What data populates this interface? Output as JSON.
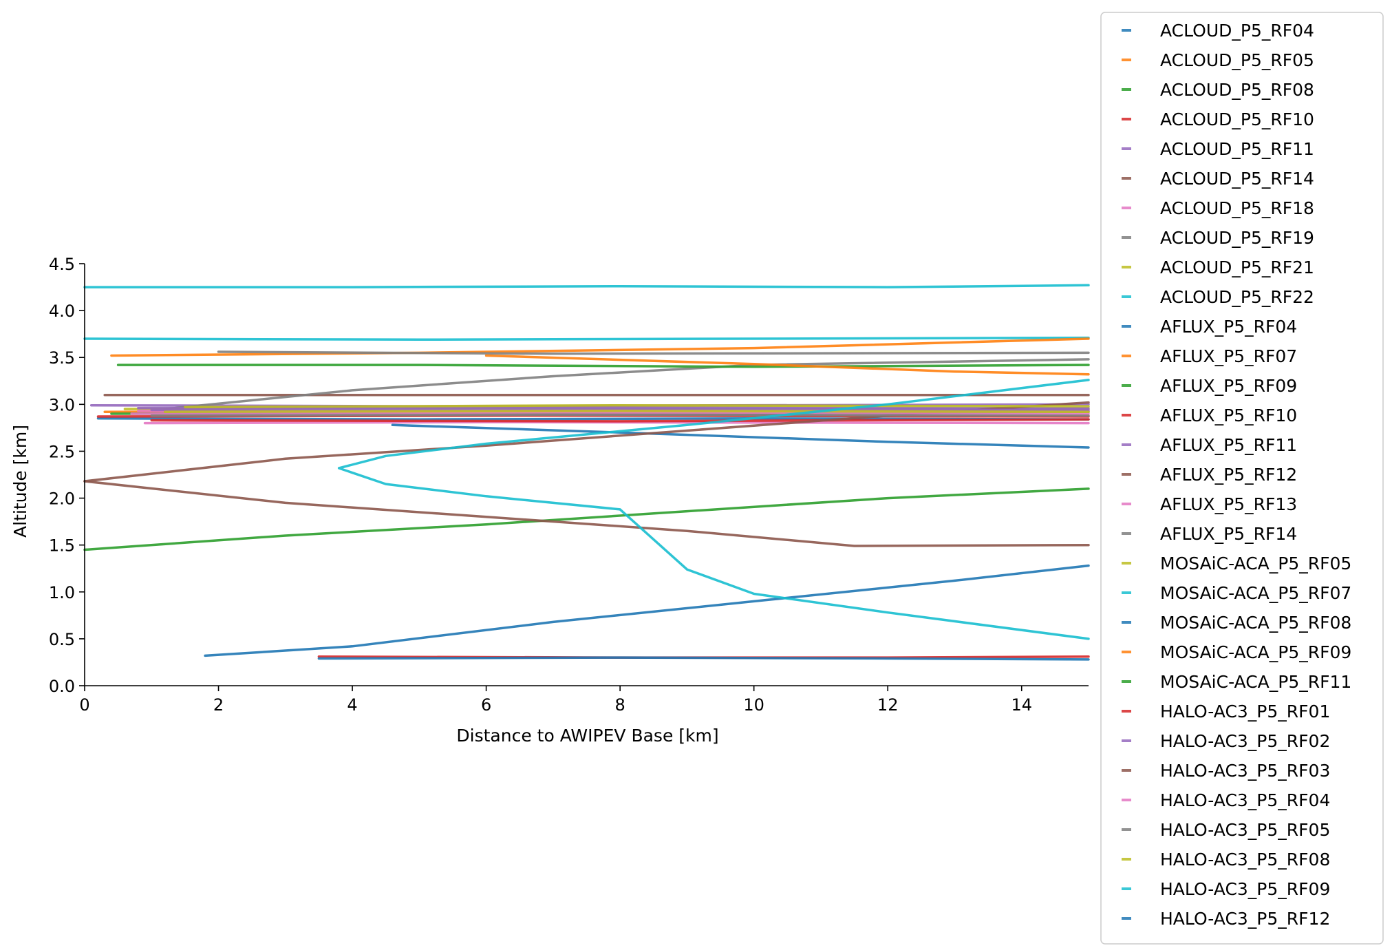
{
  "chart_data": {
    "type": "line",
    "title": "",
    "xlabel": "Distance to AWIPEV Base [km]",
    "ylabel": "Altitude [km]",
    "xlim": [
      0,
      15
    ],
    "ylim": [
      0,
      4.5
    ],
    "xticks": [
      "0",
      "2",
      "4",
      "6",
      "8",
      "10",
      "12",
      "14"
    ],
    "yticks": [
      "0.0",
      "0.5",
      "1.0",
      "1.5",
      "2.0",
      "2.5",
      "3.0",
      "3.5",
      "4.0",
      "4.5"
    ],
    "grid": false,
    "legend_position": "outside right",
    "series": [
      {
        "name": "ACLOUD_P5_RF04",
        "color": "#1f77b4",
        "x": [
          0.2,
          5,
          10,
          15
        ],
        "y": [
          2.85,
          2.84,
          2.85,
          2.84
        ]
      },
      {
        "name": "ACLOUD_P5_RF05",
        "color": "#ff7f0e",
        "x": [
          0.3,
          8,
          15
        ],
        "y": [
          2.92,
          2.93,
          2.92
        ]
      },
      {
        "name": "ACLOUD_P5_RF08",
        "color": "#2c9f2c",
        "x": [
          0.4,
          5,
          10,
          15
        ],
        "y": [
          2.9,
          2.91,
          2.9,
          2.92
        ]
      },
      {
        "name": "ACLOUD_P5_RF10",
        "color": "#d62728",
        "x": [
          0.2,
          7,
          15
        ],
        "y": [
          2.87,
          2.88,
          2.87
        ]
      },
      {
        "name": "ACLOUD_P5_RF11",
        "color": "#9467bd",
        "x": [
          0.1,
          5,
          15
        ],
        "y": [
          2.99,
          2.98,
          3.0
        ]
      },
      {
        "name": "ACLOUD_P5_RF14",
        "color": "#8c564b",
        "x": [
          0.3,
          4,
          15
        ],
        "y": [
          3.1,
          3.1,
          3.1
        ]
      },
      {
        "name": "ACLOUD_P5_RF18",
        "color": "#e377c2",
        "x": [
          0.9,
          6,
          15
        ],
        "y": [
          2.8,
          2.81,
          2.8
        ]
      },
      {
        "name": "ACLOUD_P5_RF19",
        "color": "#7f7f7f",
        "x": [
          1.2,
          4,
          7,
          10,
          15
        ],
        "y": [
          2.95,
          3.15,
          3.3,
          3.42,
          3.48
        ]
      },
      {
        "name": "ACLOUD_P5_RF21",
        "color": "#bcbd22",
        "x": [
          0.6,
          6,
          15
        ],
        "y": [
          2.95,
          2.96,
          2.95
        ]
      },
      {
        "name": "ACLOUD_P5_RF22",
        "color": "#17becf",
        "x": [
          0.0,
          5,
          15
        ],
        "y": [
          3.7,
          3.69,
          3.71
        ]
      },
      {
        "name": "AFLUX_P5_RF04",
        "color": "#1f77b4",
        "x": [
          4.6,
          8,
          12,
          15
        ],
        "y": [
          2.78,
          2.7,
          2.6,
          2.54
        ]
      },
      {
        "name": "AFLUX_P5_RF07",
        "color": "#ff7f0e",
        "x": [
          0.4,
          5,
          10,
          15
        ],
        "y": [
          3.52,
          3.55,
          3.6,
          3.7
        ]
      },
      {
        "name": "AFLUX_P5_RF09",
        "color": "#2c9f2c",
        "x": [
          0.5,
          5,
          10,
          15
        ],
        "y": [
          3.42,
          3.42,
          3.4,
          3.42
        ]
      },
      {
        "name": "AFLUX_P5_RF10",
        "color": "#d62728",
        "x": [
          1.0,
          8,
          15
        ],
        "y": [
          2.83,
          2.82,
          2.84
        ]
      },
      {
        "name": "AFLUX_P5_RF11",
        "color": "#9467bd",
        "x": [
          0.8,
          6,
          15
        ],
        "y": [
          2.96,
          2.97,
          2.96
        ]
      },
      {
        "name": "AFLUX_P5_RF12",
        "color": "#8c564b",
        "x": [
          0.0,
          3,
          6,
          9,
          12,
          15
        ],
        "y": [
          2.18,
          2.42,
          2.56,
          2.72,
          2.88,
          3.02
        ]
      },
      {
        "name": "AFLUX_P5_RF13",
        "color": "#e377c2",
        "x": [
          0.8,
          5,
          15
        ],
        "y": [
          2.93,
          2.92,
          2.93
        ]
      },
      {
        "name": "AFLUX_P5_RF14",
        "color": "#7f7f7f",
        "x": [
          2.0,
          7,
          15
        ],
        "y": [
          3.56,
          3.54,
          3.55
        ]
      },
      {
        "name": "MOSAiC-ACA_P5_RF05",
        "color": "#bcbd22",
        "x": [
          1.5,
          8,
          15
        ],
        "y": [
          2.97,
          2.99,
          2.98
        ]
      },
      {
        "name": "MOSAiC-ACA_P5_RF07",
        "color": "#17becf",
        "x": [
          0.0,
          4,
          8,
          12,
          15
        ],
        "y": [
          4.25,
          4.25,
          4.26,
          4.25,
          4.27
        ]
      },
      {
        "name": "MOSAiC-ACA_P5_RF08",
        "color": "#1f77b4",
        "x": [
          1.8,
          4,
          7,
          10,
          13,
          15
        ],
        "y": [
          0.32,
          0.42,
          0.68,
          0.9,
          1.12,
          1.28
        ]
      },
      {
        "name": "MOSAiC-ACA_P5_RF09",
        "color": "#ff7f0e",
        "x": [
          6.0,
          10,
          13,
          15
        ],
        "y": [
          3.52,
          3.43,
          3.35,
          3.32
        ]
      },
      {
        "name": "MOSAiC-ACA_P5_RF11",
        "color": "#2c9f2c",
        "x": [
          0.0,
          3,
          6,
          9,
          12,
          15
        ],
        "y": [
          1.45,
          1.6,
          1.72,
          1.86,
          2.0,
          2.1
        ]
      },
      {
        "name": "HALO-AC3_P5_RF01",
        "color": "#d62728",
        "x": [
          3.5,
          8,
          12,
          15
        ],
        "y": [
          0.31,
          0.3,
          0.3,
          0.31
        ]
      },
      {
        "name": "HALO-AC3_P5_RF02",
        "color": "#9467bd",
        "x": [
          1.0,
          8,
          15
        ],
        "y": [
          2.94,
          2.95,
          2.94
        ]
      },
      {
        "name": "HALO-AC3_P5_RF03",
        "color": "#8c564b",
        "x": [
          0.0,
          3,
          6,
          9,
          11.5,
          15
        ],
        "y": [
          2.18,
          1.95,
          1.8,
          1.65,
          1.49,
          1.5
        ]
      },
      {
        "name": "HALO-AC3_P5_RF04",
        "color": "#e377c2",
        "x": [
          0.7,
          6,
          15
        ],
        "y": [
          2.9,
          2.91,
          2.9
        ]
      },
      {
        "name": "HALO-AC3_P5_RF05",
        "color": "#7f7f7f",
        "x": [
          1.0,
          7,
          15
        ],
        "y": [
          2.88,
          2.89,
          2.88
        ]
      },
      {
        "name": "HALO-AC3_P5_RF08",
        "color": "#bcbd22",
        "x": [
          1.2,
          8,
          15
        ],
        "y": [
          2.92,
          2.93,
          2.92
        ]
      },
      {
        "name": "HALO-AC3_P5_RF09",
        "color": "#17becf",
        "x": [
          15.0,
          12,
          9,
          6,
          4.5,
          3.8,
          4.5,
          6,
          8,
          9.0,
          10,
          12,
          15
        ],
        "y": [
          3.26,
          3.0,
          2.78,
          2.58,
          2.45,
          2.32,
          2.15,
          2.02,
          1.88,
          1.24,
          0.98,
          0.78,
          0.5
        ]
      },
      {
        "name": "HALO-AC3_P5_RF12",
        "color": "#1f77b4",
        "x": [
          3.5,
          8,
          12,
          15
        ],
        "y": [
          0.29,
          0.3,
          0.29,
          0.28
        ]
      }
    ]
  }
}
